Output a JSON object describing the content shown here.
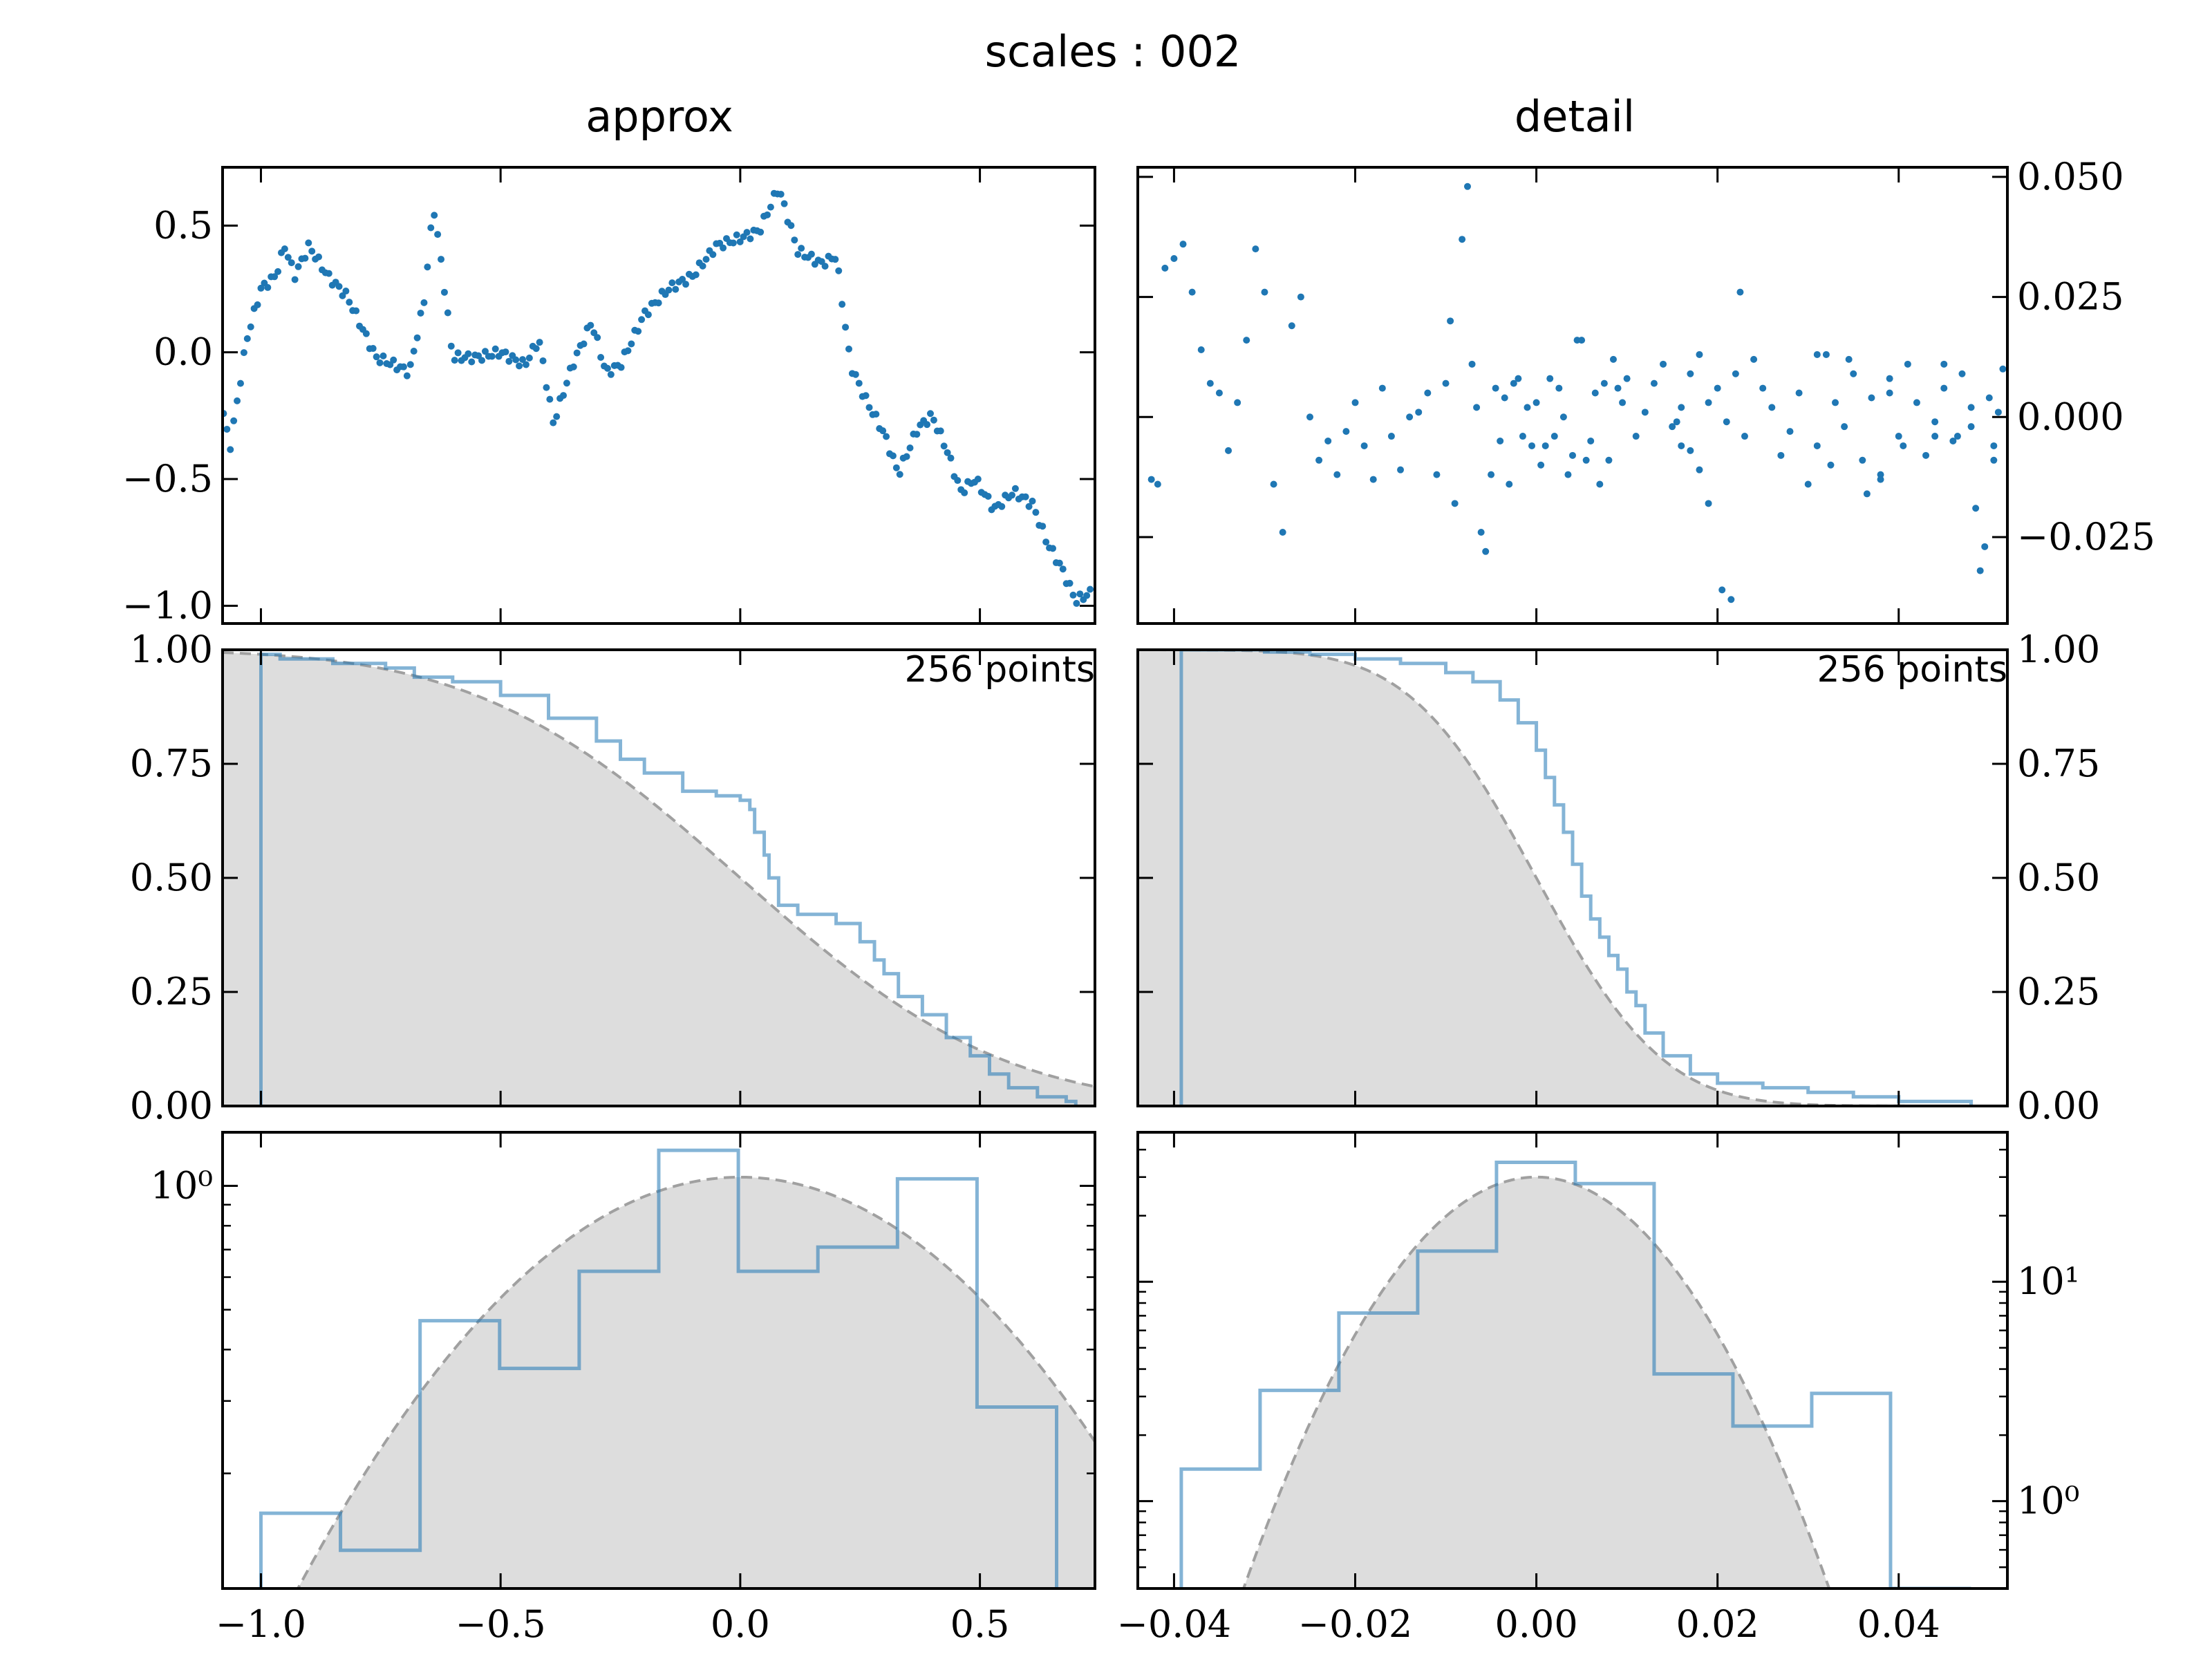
{
  "figure": {
    "suptitle": "scales : 002",
    "columns": [
      "approx",
      "detail"
    ],
    "points_label": "256 points"
  },
  "colors": {
    "series": "#1f77b4",
    "model_fill": "#dddddd",
    "model_line": "#a0a0a0",
    "axes": "#000000"
  },
  "chart_data": [
    {
      "name": "approx-series",
      "type": "scatter",
      "xlim": [
        -1.08,
        0.74
      ],
      "ylim": [
        -1.07,
        0.73
      ],
      "yticks": [
        0.5,
        0.0,
        -0.5,
        -1.0
      ],
      "ytick_labels": [
        "0.5",
        "0.0",
        "−0.5",
        "−1.0"
      ],
      "anchors": [
        [
          -1.08,
          -0.22
        ],
        [
          -1.065,
          -0.38
        ],
        [
          -1.05,
          -0.2
        ],
        [
          -1.03,
          0.05
        ],
        [
          -1.0,
          0.25
        ],
        [
          -0.97,
          0.3
        ],
        [
          -0.95,
          0.42
        ],
        [
          -0.93,
          0.3
        ],
        [
          -0.9,
          0.42
        ],
        [
          -0.86,
          0.3
        ],
        [
          -0.82,
          0.22
        ],
        [
          -0.79,
          0.1
        ],
        [
          -0.76,
          -0.02
        ],
        [
          -0.72,
          -0.05
        ],
        [
          -0.69,
          -0.08
        ],
        [
          -0.66,
          0.2
        ],
        [
          -0.64,
          0.58
        ],
        [
          -0.62,
          0.3
        ],
        [
          -0.6,
          -0.02
        ],
        [
          -0.55,
          -0.02
        ],
        [
          -0.5,
          0.0
        ],
        [
          -0.45,
          -0.05
        ],
        [
          -0.42,
          0.05
        ],
        [
          -0.39,
          -0.28
        ],
        [
          -0.35,
          -0.05
        ],
        [
          -0.31,
          0.12
        ],
        [
          -0.28,
          -0.08
        ],
        [
          -0.25,
          -0.05
        ],
        [
          -0.2,
          0.15
        ],
        [
          -0.15,
          0.25
        ],
        [
          -0.1,
          0.3
        ],
        [
          -0.05,
          0.42
        ],
        [
          0.0,
          0.45
        ],
        [
          0.04,
          0.48
        ],
        [
          0.08,
          0.65
        ],
        [
          0.12,
          0.4
        ],
        [
          0.17,
          0.35
        ],
        [
          0.2,
          0.38
        ],
        [
          0.23,
          -0.05
        ],
        [
          0.26,
          -0.18
        ],
        [
          0.3,
          -0.32
        ],
        [
          0.33,
          -0.48
        ],
        [
          0.37,
          -0.3
        ],
        [
          0.4,
          -0.25
        ],
        [
          0.43,
          -0.38
        ],
        [
          0.46,
          -0.55
        ],
        [
          0.49,
          -0.5
        ],
        [
          0.53,
          -0.62
        ],
        [
          0.57,
          -0.55
        ],
        [
          0.61,
          -0.6
        ],
        [
          0.64,
          -0.75
        ],
        [
          0.67,
          -0.85
        ],
        [
          0.7,
          -0.98
        ],
        [
          0.73,
          -0.95
        ]
      ],
      "n_points": 256
    },
    {
      "name": "detail-series",
      "type": "scatter",
      "xlim": [
        -0.044,
        0.052
      ],
      "ylim": [
        -0.043,
        0.052
      ],
      "yticks": [
        0.05,
        0.025,
        0.0,
        -0.025
      ],
      "ytick_labels": [
        "0.050",
        "0.025",
        "0.000",
        "−0.025"
      ],
      "points": [
        [
          -0.0425,
          -0.013
        ],
        [
          -0.0418,
          -0.014
        ],
        [
          -0.041,
          0.031
        ],
        [
          -0.04,
          0.033
        ],
        [
          -0.039,
          0.036
        ],
        [
          -0.038,
          0.026
        ],
        [
          -0.037,
          0.014
        ],
        [
          -0.036,
          0.007
        ],
        [
          -0.035,
          0.005
        ],
        [
          -0.034,
          -0.007
        ],
        [
          -0.033,
          0.003
        ],
        [
          -0.032,
          0.016
        ],
        [
          -0.031,
          0.035
        ],
        [
          -0.03,
          0.026
        ],
        [
          -0.029,
          -0.014
        ],
        [
          -0.028,
          -0.024
        ],
        [
          -0.027,
          0.019
        ],
        [
          -0.026,
          0.025
        ],
        [
          -0.025,
          0.0
        ],
        [
          -0.024,
          -0.009
        ],
        [
          -0.023,
          -0.005
        ],
        [
          -0.022,
          -0.012
        ],
        [
          -0.021,
          -0.003
        ],
        [
          -0.02,
          0.003
        ],
        [
          -0.019,
          -0.006
        ],
        [
          -0.018,
          -0.013
        ],
        [
          -0.017,
          0.006
        ],
        [
          -0.016,
          -0.004
        ],
        [
          -0.015,
          -0.011
        ],
        [
          -0.014,
          0.0
        ],
        [
          -0.013,
          0.001
        ],
        [
          -0.012,
          0.005
        ],
        [
          -0.011,
          -0.012
        ],
        [
          -0.01,
          0.007
        ],
        [
          -0.0095,
          0.02
        ],
        [
          -0.009,
          -0.018
        ],
        [
          -0.0082,
          0.037
        ],
        [
          -0.0076,
          0.048
        ],
        [
          -0.0071,
          0.011
        ],
        [
          -0.0066,
          0.002
        ],
        [
          -0.0061,
          -0.024
        ],
        [
          -0.0056,
          -0.028
        ],
        [
          -0.005,
          -0.012
        ],
        [
          -0.0045,
          0.006
        ],
        [
          -0.004,
          -0.005
        ],
        [
          -0.0035,
          0.004
        ],
        [
          -0.003,
          -0.014
        ],
        [
          -0.0025,
          0.007
        ],
        [
          -0.002,
          0.008
        ],
        [
          -0.0015,
          -0.004
        ],
        [
          -0.001,
          0.002
        ],
        [
          -0.0005,
          -0.006
        ],
        [
          0.0,
          0.003
        ],
        [
          0.0005,
          -0.01
        ],
        [
          0.001,
          -0.006
        ],
        [
          0.0015,
          0.008
        ],
        [
          0.002,
          -0.004
        ],
        [
          0.0025,
          0.006
        ],
        [
          0.003,
          0.0
        ],
        [
          0.0035,
          -0.012
        ],
        [
          0.004,
          -0.008
        ],
        [
          0.0045,
          0.016
        ],
        [
          0.005,
          0.016
        ],
        [
          0.0055,
          -0.009
        ],
        [
          0.006,
          -0.005
        ],
        [
          0.0065,
          0.005
        ],
        [
          0.007,
          -0.014
        ],
        [
          0.0075,
          0.007
        ],
        [
          0.008,
          -0.009
        ],
        [
          0.0085,
          0.012
        ],
        [
          0.009,
          0.006
        ],
        [
          0.0095,
          0.003
        ],
        [
          0.01,
          0.008
        ],
        [
          0.011,
          -0.004
        ],
        [
          0.012,
          0.001
        ],
        [
          0.013,
          0.007
        ],
        [
          0.014,
          0.011
        ],
        [
          0.015,
          -0.002
        ],
        [
          0.016,
          -0.006
        ],
        [
          0.017,
          0.009
        ],
        [
          0.018,
          0.013
        ],
        [
          0.019,
          0.003
        ],
        [
          0.02,
          0.006
        ],
        [
          0.021,
          -0.001
        ],
        [
          0.022,
          0.009
        ],
        [
          0.023,
          -0.004
        ],
        [
          0.024,
          0.012
        ],
        [
          0.025,
          0.006
        ],
        [
          0.026,
          0.002
        ],
        [
          0.027,
          -0.008
        ],
        [
          0.028,
          -0.003
        ],
        [
          0.029,
          0.005
        ],
        [
          0.03,
          -0.014
        ],
        [
          0.031,
          -0.006
        ],
        [
          0.032,
          0.013
        ],
        [
          0.033,
          0.003
        ],
        [
          0.034,
          -0.002
        ],
        [
          0.035,
          0.009
        ],
        [
          0.036,
          -0.009
        ],
        [
          0.037,
          0.004
        ],
        [
          0.038,
          -0.012
        ],
        [
          0.039,
          0.008
        ],
        [
          0.04,
          -0.004
        ],
        [
          0.041,
          0.011
        ],
        [
          0.042,
          0.003
        ],
        [
          0.043,
          -0.008
        ],
        [
          0.044,
          -0.001
        ],
        [
          0.045,
          0.006
        ],
        [
          0.046,
          -0.005
        ],
        [
          0.047,
          0.009
        ],
        [
          0.048,
          -0.002
        ],
        [
          0.0485,
          -0.019
        ],
        [
          0.049,
          -0.032
        ],
        [
          0.05,
          0.004
        ],
        [
          0.0505,
          -0.009
        ],
        [
          0.051,
          0.001
        ],
        [
          0.0515,
          0.01
        ],
        [
          0.0205,
          -0.036
        ],
        [
          0.0215,
          -0.038
        ],
        [
          0.0225,
          0.026
        ],
        [
          0.019,
          -0.018
        ],
        [
          0.018,
          -0.011
        ],
        [
          0.017,
          -0.007
        ],
        [
          0.016,
          0.002
        ],
        [
          0.0155,
          -0.001
        ],
        [
          0.031,
          0.013
        ],
        [
          0.0325,
          -0.01
        ],
        [
          0.0345,
          0.012
        ],
        [
          0.0365,
          -0.016
        ],
        [
          0.038,
          -0.013
        ],
        [
          0.039,
          0.005
        ],
        [
          0.0405,
          -0.006
        ],
        [
          0.044,
          -0.004
        ],
        [
          0.045,
          0.011
        ],
        [
          0.0465,
          -0.004
        ],
        [
          0.048,
          0.002
        ],
        [
          0.0495,
          -0.027
        ],
        [
          0.0505,
          -0.006
        ]
      ],
      "n_points": 256
    },
    {
      "name": "approx-ccdf",
      "type": "line",
      "xlim": [
        -1.08,
        0.74
      ],
      "ylim": [
        0.0,
        1.0
      ],
      "yticks": [
        0.0,
        0.25,
        0.5,
        0.75,
        1.0
      ],
      "ytick_labels": [
        "0.00",
        "0.25",
        "0.50",
        "0.75",
        "1.00"
      ],
      "empirical": [
        [
          -1.0,
          0.0
        ],
        [
          -1.0,
          0.99
        ],
        [
          -0.96,
          0.98
        ],
        [
          -0.85,
          0.97
        ],
        [
          -0.74,
          0.96
        ],
        [
          -0.68,
          0.94
        ],
        [
          -0.6,
          0.93
        ],
        [
          -0.5,
          0.9
        ],
        [
          -0.4,
          0.85
        ],
        [
          -0.3,
          0.8
        ],
        [
          -0.25,
          0.76
        ],
        [
          -0.2,
          0.73
        ],
        [
          -0.12,
          0.69
        ],
        [
          -0.05,
          0.68
        ],
        [
          0.0,
          0.67
        ],
        [
          0.02,
          0.65
        ],
        [
          0.03,
          0.6
        ],
        [
          0.05,
          0.55
        ],
        [
          0.06,
          0.5
        ],
        [
          0.08,
          0.44
        ],
        [
          0.12,
          0.42
        ],
        [
          0.2,
          0.4
        ],
        [
          0.25,
          0.36
        ],
        [
          0.28,
          0.32
        ],
        [
          0.3,
          0.29
        ],
        [
          0.33,
          0.24
        ],
        [
          0.38,
          0.2
        ],
        [
          0.43,
          0.15
        ],
        [
          0.48,
          0.11
        ],
        [
          0.52,
          0.07
        ],
        [
          0.56,
          0.04
        ],
        [
          0.62,
          0.02
        ],
        [
          0.68,
          0.01
        ],
        [
          0.7,
          0.0
        ]
      ],
      "model": {
        "mu": 0.0,
        "sigma": 0.43
      }
    },
    {
      "name": "detail-ccdf",
      "type": "line",
      "xlim": [
        -0.044,
        0.052
      ],
      "ylim": [
        0.0,
        1.0
      ],
      "yticks": [
        0.0,
        0.25,
        0.5,
        0.75,
        1.0
      ],
      "ytick_labels": [
        "0.00",
        "0.25",
        "0.50",
        "0.75",
        "1.00"
      ],
      "empirical": [
        [
          -0.0392,
          0.0
        ],
        [
          -0.0392,
          1.0
        ],
        [
          -0.03,
          0.995
        ],
        [
          -0.025,
          0.99
        ],
        [
          -0.02,
          0.98
        ],
        [
          -0.015,
          0.97
        ],
        [
          -0.01,
          0.95
        ],
        [
          -0.007,
          0.93
        ],
        [
          -0.004,
          0.89
        ],
        [
          -0.002,
          0.84
        ],
        [
          0.0,
          0.78
        ],
        [
          0.001,
          0.72
        ],
        [
          0.002,
          0.66
        ],
        [
          0.003,
          0.6
        ],
        [
          0.004,
          0.53
        ],
        [
          0.005,
          0.46
        ],
        [
          0.006,
          0.41
        ],
        [
          0.007,
          0.37
        ],
        [
          0.008,
          0.33
        ],
        [
          0.009,
          0.3
        ],
        [
          0.01,
          0.25
        ],
        [
          0.011,
          0.22
        ],
        [
          0.012,
          0.16
        ],
        [
          0.014,
          0.11
        ],
        [
          0.017,
          0.07
        ],
        [
          0.02,
          0.05
        ],
        [
          0.025,
          0.04
        ],
        [
          0.03,
          0.03
        ],
        [
          0.035,
          0.02
        ],
        [
          0.04,
          0.01
        ],
        [
          0.048,
          0.0
        ]
      ],
      "model": {
        "mu": 0.0,
        "sigma": 0.011
      }
    },
    {
      "name": "approx-histogram",
      "type": "bar",
      "scale": "log",
      "xlim": [
        -1.08,
        0.74
      ],
      "ylim": [
        0.105,
        1.35
      ],
      "yticks": [
        1.0
      ],
      "ytick_labels": [
        "10⁰"
      ],
      "bin_edges": [
        -1.0,
        -0.834,
        -0.668,
        -0.502,
        -0.336,
        -0.17,
        -0.004,
        0.162,
        0.328,
        0.494,
        0.66
      ],
      "values": [
        0.16,
        0.13,
        0.47,
        0.36,
        0.62,
        1.22,
        0.62,
        0.71,
        1.04,
        0.29
      ],
      "model": {
        "mu": 0.0,
        "sigma": 0.43,
        "peak": 1.05
      }
    },
    {
      "name": "detail-histogram",
      "type": "bar",
      "scale": "log",
      "xlim": [
        -0.044,
        0.052
      ],
      "ylim": [
        0.4,
        48
      ],
      "yticks": [
        1,
        10
      ],
      "ytick_labels": [
        "10⁰",
        "10¹"
      ],
      "xticks": [
        -0.04,
        -0.02,
        0.0,
        0.02,
        0.04
      ],
      "xtick_labels": [
        "−0.04",
        "−0.02",
        "0.00",
        "0.02",
        "0.04"
      ],
      "bin_edges": [
        -0.0392,
        -0.0305,
        -0.0218,
        -0.0131,
        -0.0044,
        0.0043,
        0.013,
        0.0217,
        0.0304,
        0.0391,
        0.0478
      ],
      "values": [
        1.4,
        3.2,
        7.2,
        13.8,
        35.0,
        28.0,
        3.8,
        2.2,
        3.1,
        0.4
      ],
      "model": {
        "mu": 0.0,
        "sigma": 0.011,
        "peak": 30.0
      }
    }
  ],
  "x_axis_left": {
    "ticks": [
      -1.0,
      -0.5,
      0.0,
      0.5
    ],
    "tick_labels": [
      "−1.0",
      "−0.5",
      "0.0",
      "0.5"
    ]
  }
}
